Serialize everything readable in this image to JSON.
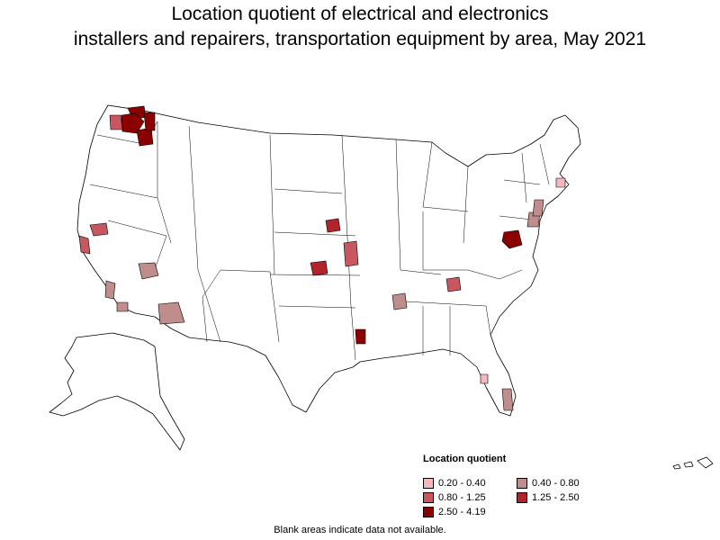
{
  "title": {
    "line1": "Location quotient of electrical and electronics",
    "line2": "installers and repairers, transportation equipment by area, May 2021"
  },
  "legend": {
    "title": "Location quotient",
    "items": [
      {
        "label": "0.20 - 0.40",
        "color": "#f4b6bf"
      },
      {
        "label": "0.40 - 0.80",
        "color": "#c08d8d"
      },
      {
        "label": "0.80 - 1.25",
        "color": "#c9575f"
      },
      {
        "label": "1.25 - 2.50",
        "color": "#b2232b"
      },
      {
        "label": "2.50 - 4.19",
        "color": "#8b0000"
      }
    ]
  },
  "footnote": "Blank areas indicate data not available."
}
